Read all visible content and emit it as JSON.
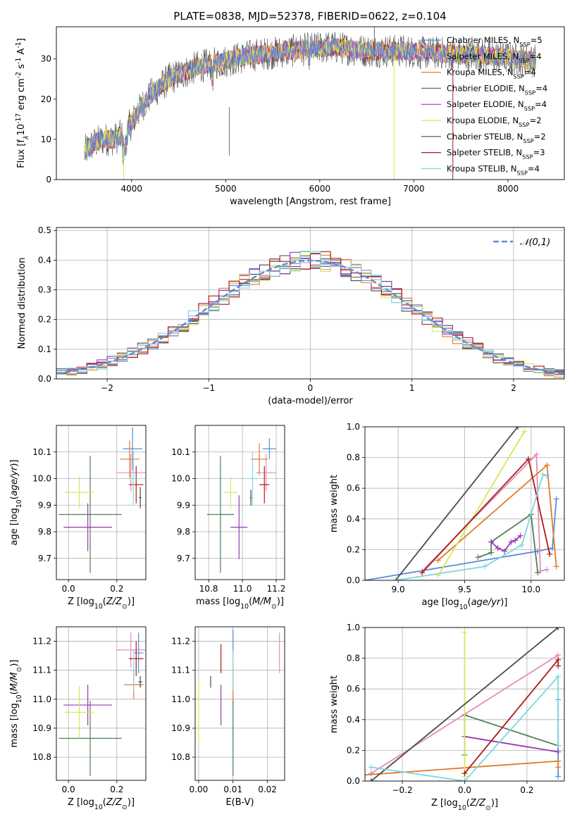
{
  "figure": {
    "title": "PLATE=0838, MJD=52378, FIBERID=0622, z=0.104"
  },
  "legend_labels": [
    "Chabrier MILES, N$_{SSP}$=5",
    "Salpeter MILES, N$_{SSP}$=4",
    "Kroupa MILES, N$_{SSP}$=4",
    "Chabrier ELODIE, N$_{SSP}$=4",
    "Salpeter ELODIE, N$_{SSP}$=4",
    "Kroupa ELODIE, N$_{SSP}$=2",
    "Chabrier STELIB, N$_{SSP}$=2",
    "Salpeter STELIB, N$_{SSP}$=3",
    "Kroupa STELIB, N$_{SSP}$=4"
  ],
  "chart_data": [
    {
      "type": "line",
      "panel": "spectrum",
      "xlabel": "wavelength [Angstrom, rest frame]",
      "ylabel": "Flux [f$_\\lambda$10$^{-17}$ erg cm$^{-2}$ s$^{-1}$ A$^{-1}$]",
      "xlim": [
        3200,
        8600
      ],
      "ylim": [
        0,
        38
      ],
      "xticks": [
        4000,
        5000,
        6000,
        7000,
        8000
      ],
      "yticks": [
        0,
        10,
        20,
        30
      ],
      "x_range": [
        3500,
        8300
      ],
      "continuum_x": [
        3500,
        3600,
        3700,
        3800,
        3900,
        4000,
        4100,
        4200,
        4300,
        4400,
        4500,
        4700,
        4900,
        5100,
        5300,
        5500,
        5700,
        5900,
        6100,
        6300,
        6500,
        6700,
        6900,
        7100,
        7300,
        7500,
        7700,
        7900,
        8100,
        8300
      ],
      "continuum_y": [
        7,
        9,
        10,
        10,
        11,
        14,
        18,
        21,
        23,
        25,
        26,
        28,
        29,
        30,
        31,
        31.5,
        32,
        32.5,
        33,
        32.5,
        32,
        32,
        32,
        31.5,
        31.5,
        31,
        31,
        30.5,
        30,
        29.5
      ],
      "noise_amplitude": 3,
      "grid": false,
      "legend_position": "right"
    },
    {
      "type": "histogram",
      "panel": "residuals",
      "xlabel": "(data-model)/error",
      "ylabel": "Normed distribution",
      "xlim": [
        -2.5,
        2.5
      ],
      "ylim": [
        0,
        0.51
      ],
      "xticks": [
        -2,
        -1,
        0,
        1,
        2
      ],
      "yticks": [
        0,
        0.1,
        0.2,
        0.3,
        0.4,
        0.5
      ],
      "bin_width": 0.1,
      "series_scatter": 0.035,
      "reference_curve": {
        "name": "$\\mathcal{N}(0,1)$",
        "mean": 0,
        "sigma": 1,
        "color": "#5b8bd6"
      },
      "grid": true,
      "legend_position": "top-right"
    },
    {
      "type": "scatter",
      "panel": "age_vs_Z",
      "xlabel": "Z [log$_{10}$($Z/Z_\\odot$)]",
      "ylabel": "age  [log$_{10}$($age/yr$)]",
      "xlim": [
        -0.05,
        0.32
      ],
      "ylim": [
        9.62,
        10.2
      ],
      "xticks": [
        0.0,
        0.2
      ],
      "yticks": [
        9.7,
        9.8,
        9.9,
        10.0,
        10.1
      ],
      "points": [
        {
          "x": 0.265,
          "y": 10.112,
          "xerr": 0.04,
          "yerr": 0.08
        },
        {
          "x": 0.258,
          "y": 10.022,
          "xerr": 0.06,
          "yerr": 0.07
        },
        {
          "x": 0.253,
          "y": 10.073,
          "xerr": 0.04,
          "yerr": 0.07
        },
        {
          "x": 0.09,
          "y": 9.865,
          "xerr": 0.13,
          "yerr": 0.22
        },
        {
          "x": 0.08,
          "y": 9.817,
          "xerr": 0.1,
          "yerr": 0.09
        },
        {
          "x": 0.045,
          "y": 9.948,
          "xerr": 0.06,
          "yerr": 0.06
        },
        {
          "x": 0.297,
          "y": 9.928,
          "xerr": 0.005,
          "yerr": 0.04
        },
        {
          "x": 0.28,
          "y": 9.977,
          "xerr": 0.03,
          "yerr": 0.07
        },
        {
          "x": 0.268,
          "y": 10.0,
          "xerr": 0.02,
          "yerr": 0.1
        }
      ],
      "grid": true
    },
    {
      "type": "scatter",
      "panel": "age_vs_mass",
      "xlabel": "mass [log$_{10}$($M/M_\\odot$)]",
      "ylabel": "",
      "xlim": [
        10.72,
        11.25
      ],
      "ylim": [
        9.62,
        10.2
      ],
      "xticks": [
        10.8,
        11.0,
        11.2
      ],
      "yticks": [
        9.7,
        9.8,
        9.9,
        10.0,
        10.1
      ],
      "points": [
        {
          "x": 11.16,
          "y": 10.112,
          "xerr": 0.04,
          "yerr": 0.04
        },
        {
          "x": 11.14,
          "y": 10.022,
          "xerr": 0.06,
          "yerr": 0.07
        },
        {
          "x": 11.1,
          "y": 10.073,
          "xerr": 0.05,
          "yerr": 0.06
        },
        {
          "x": 10.87,
          "y": 9.865,
          "xerr": 0.08,
          "yerr": 0.22
        },
        {
          "x": 10.98,
          "y": 9.817,
          "xerr": 0.05,
          "yerr": 0.12
        },
        {
          "x": 10.93,
          "y": 9.948,
          "xerr": 0.04,
          "yerr": 0.06
        },
        {
          "x": 11.05,
          "y": 9.928,
          "xerr": 0.005,
          "yerr": 0.03
        },
        {
          "x": 11.13,
          "y": 9.977,
          "xerr": 0.03,
          "yerr": 0.07
        },
        {
          "x": 11.06,
          "y": 10.0,
          "xerr": 0.03,
          "yerr": 0.1
        }
      ],
      "grid": true
    },
    {
      "type": "line",
      "panel": "cumulative_mass_weight_vs_age",
      "xlabel": "age  [log$_{10}$($age/yr$)]",
      "ylabel": "mass weight",
      "xlim": [
        8.75,
        10.25
      ],
      "ylim": [
        0,
        1
      ],
      "xticks": [
        9.0,
        9.5,
        10.0
      ],
      "yticks": [
        0.0,
        0.2,
        0.4,
        0.6,
        0.8,
        1.0
      ],
      "series": [
        {
          "x": [
            8.75,
            10.05,
            10.16,
            10.19
          ],
          "y": [
            0.0,
            0.19,
            0.21,
            0.53
          ]
        },
        {
          "x": [
            9.18,
            10.04,
            10.07,
            10.12
          ],
          "y": [
            0.06,
            0.82,
            0.06,
            0.07
          ]
        },
        {
          "x": [
            9.3,
            10.12,
            10.19
          ],
          "y": [
            0.13,
            0.75,
            0.09
          ]
        },
        {
          "x": [
            9.6,
            9.7,
            9.7,
            10.0,
            10.05
          ],
          "y": [
            0.15,
            0.18,
            0.25,
            0.43,
            0.05
          ]
        },
        {
          "x": [
            9.7,
            9.75,
            9.8,
            9.85,
            9.88,
            9.92
          ],
          "y": [
            0.25,
            0.21,
            0.19,
            0.25,
            0.26,
            0.29
          ]
        },
        {
          "x": [
            9.3,
            9.95
          ],
          "y": [
            0.03,
            0.97
          ]
        },
        {
          "x": [
            8.98,
            9.9
          ],
          "y": [
            0.0,
            1.0
          ]
        },
        {
          "x": [
            9.18,
            9.98,
            10.14
          ],
          "y": [
            0.05,
            0.79,
            0.17
          ]
        },
        {
          "x": [
            8.98,
            9.65,
            9.93,
            10.09,
            10.12
          ],
          "y": [
            0.0,
            0.09,
            0.23,
            0.69,
            0.68
          ]
        }
      ],
      "grid": true
    },
    {
      "type": "scatter",
      "panel": "mass_vs_Z",
      "xlabel": "Z [log$_{10}$($Z/Z_\\odot$)]",
      "ylabel": "mass [log$_{10}$($M/M_\\odot$)]",
      "xlim": [
        -0.05,
        0.32
      ],
      "ylim": [
        10.72,
        11.25
      ],
      "xticks": [
        0.0,
        0.2
      ],
      "yticks": [
        10.8,
        10.9,
        11.0,
        11.1,
        11.2
      ],
      "points": [
        {
          "x": 0.29,
          "y": 11.16,
          "xerr": 0.02,
          "yerr": 0.07
        },
        {
          "x": 0.258,
          "y": 11.17,
          "xerr": 0.06,
          "yerr": 0.06
        },
        {
          "x": 0.27,
          "y": 11.05,
          "xerr": 0.04,
          "yerr": 0.05
        },
        {
          "x": 0.09,
          "y": 10.865,
          "xerr": 0.13,
          "yerr": 0.13
        },
        {
          "x": 0.08,
          "y": 10.98,
          "xerr": 0.1,
          "yerr": 0.07
        },
        {
          "x": 0.045,
          "y": 10.955,
          "xerr": 0.06,
          "yerr": 0.09
        },
        {
          "x": 0.297,
          "y": 11.06,
          "xerr": 0.008,
          "yerr": 0.02
        },
        {
          "x": 0.28,
          "y": 11.14,
          "xerr": 0.03,
          "yerr": 0.06
        },
        {
          "x": 0.27,
          "y": 11.1,
          "xerr": 0.02,
          "yerr": 0.07
        }
      ],
      "grid": true
    },
    {
      "type": "scatter",
      "panel": "mass_vs_ebv",
      "xlabel": "E(B-V)",
      "ylabel": "",
      "xlim": [
        -0.001,
        0.025
      ],
      "ylim": [
        10.72,
        11.25
      ],
      "xticks": [
        0.0,
        0.01,
        0.02
      ],
      "yticks": [
        10.8,
        10.9,
        11.0,
        11.1,
        11.2
      ],
      "points": [
        {
          "x": 0.01,
          "y": 11.2,
          "xerr": 0,
          "yerr": 0.04
        },
        {
          "x": 0.0235,
          "y": 11.16,
          "xerr": 0,
          "yerr": 0.07
        },
        {
          "x": 0.01,
          "y": 11.05,
          "xerr": 0,
          "yerr": 0.07
        },
        {
          "x": 0.01,
          "y": 10.865,
          "xerr": 0,
          "yerr": 0.13
        },
        {
          "x": 0.0065,
          "y": 10.98,
          "xerr": 0,
          "yerr": 0.07
        },
        {
          "x": 0.0,
          "y": 10.955,
          "xerr": 0,
          "yerr": 0.12
        },
        {
          "x": 0.0035,
          "y": 11.06,
          "xerr": 0,
          "yerr": 0.02
        },
        {
          "x": 0.0065,
          "y": 11.14,
          "xerr": 0,
          "yerr": 0.05
        },
        {
          "x": 0.01,
          "y": 11.1,
          "xerr": 0,
          "yerr": 0.07
        }
      ],
      "grid": true
    },
    {
      "type": "line",
      "panel": "cumulative_mass_weight_vs_Z",
      "xlabel": "Z [log$_{10}$($Z/Z_\\odot$)]",
      "ylabel": "mass weight",
      "xlim": [
        -0.32,
        0.32
      ],
      "ylim": [
        0,
        1
      ],
      "xticks": [
        -0.2,
        0.0,
        0.2
      ],
      "yticks": [
        0.0,
        0.2,
        0.4,
        0.6,
        0.8,
        1.0
      ],
      "series": [
        {
          "x": [
            0.3,
            0.3,
            0.3
          ],
          "y": [
            0.03,
            0.23,
            0.53
          ]
        },
        {
          "x": [
            -0.3,
            0.3
          ],
          "y": [
            0.05,
            0.82
          ]
        },
        {
          "x": [
            -0.32,
            0.3,
            0.3
          ],
          "y": [
            0.04,
            0.13,
            0.09
          ]
        },
        {
          "x": [
            0.0,
            0.0,
            0.3
          ],
          "y": [
            0.17,
            0.43,
            0.23
          ]
        },
        {
          "x": [
            0.0,
            0.3
          ],
          "y": [
            0.29,
            0.19
          ]
        },
        {
          "x": [
            0.0,
            0.0
          ],
          "y": [
            0.03,
            0.97
          ]
        },
        {
          "x": [
            -0.3,
            0.3
          ],
          "y": [
            0.0,
            1.0
          ]
        },
        {
          "x": [
            0.0,
            0.3,
            0.3
          ],
          "y": [
            0.05,
            0.79,
            0.75
          ]
        },
        {
          "x": [
            -0.3,
            0.0,
            0.3,
            0.3
          ],
          "y": [
            0.09,
            0.0,
            0.68,
            0.23
          ]
        }
      ],
      "grid": true
    }
  ],
  "series_colors": [
    "#5b8bd6",
    "#e48bbb",
    "#e07b2a",
    "#4f7f55",
    "#9b36b6",
    "#d7e854",
    "#4a4a4a",
    "#ad1919",
    "#7fd6df"
  ]
}
